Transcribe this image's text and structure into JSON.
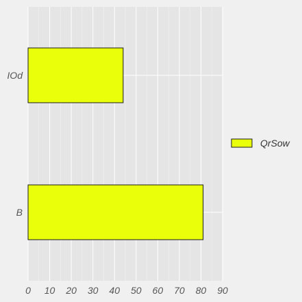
{
  "chart_data": {
    "type": "bar",
    "orientation": "horizontal",
    "categories": [
      "IOd",
      "B"
    ],
    "series": [
      {
        "name": "QrSow",
        "values": [
          44,
          81
        ]
      }
    ],
    "xlim": [
      0,
      90
    ],
    "xticks": [
      0,
      10,
      20,
      30,
      40,
      50,
      60,
      70,
      80,
      90
    ],
    "grid": true,
    "legend_position": "right",
    "colors": {
      "bar_fill": "#eaff0a",
      "bar_stroke": "#1a1a1a",
      "plot_bg": "#e5e5e5",
      "page_bg": "#f0f0f0",
      "grid": "#ffffff"
    }
  }
}
